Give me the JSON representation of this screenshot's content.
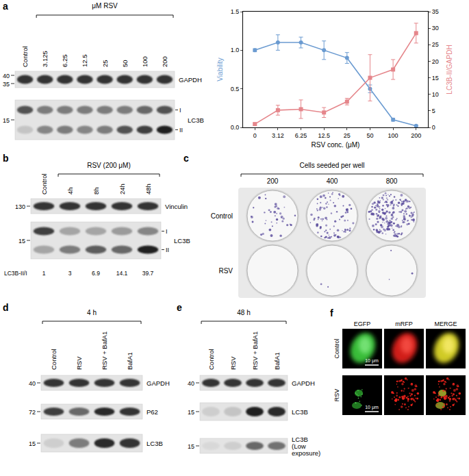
{
  "chart_data": {
    "type": "line",
    "x_label": "RSV conc. (μM)",
    "y_label": "Viability",
    "y2_label": "LC3B-II/GAPDH",
    "categories": [
      "0",
      "3.12",
      "6.25",
      "12.5",
      "25",
      "50",
      "100",
      "200"
    ],
    "series": [
      {
        "name": "Viability",
        "color": "#6b9bd1",
        "marker": "circle",
        "values": [
          1.0,
          1.1,
          1.1,
          1.0,
          0.9,
          0.5,
          0.1,
          0.02
        ],
        "errors": [
          0.02,
          0.1,
          0.07,
          0.12,
          0.07,
          0.05,
          0.02,
          0.01
        ]
      },
      {
        "name": "LC3B-II/GAPDH",
        "axis": "y2",
        "color": "#e5868b",
        "marker": "square",
        "values": [
          1,
          5.2,
          5.5,
          4.5,
          7.8,
          15,
          17.5,
          28.5
        ],
        "errors": [
          0.3,
          1.5,
          2.8,
          1.5,
          1,
          7,
          3,
          3
        ]
      }
    ],
    "ylim": [
      0,
      1.5
    ],
    "yticks": [
      {
        "value": 0,
        "label": "0.0"
      },
      0.5,
      {
        "value": 1,
        "label": "1.0"
      },
      1.5
    ],
    "y2lim": [
      0,
      35
    ],
    "y2ticks": [
      0,
      5,
      10,
      15,
      20,
      25,
      30,
      35
    ],
    "grid": false
  },
  "figure": {
    "panels": [
      {
        "label": "a",
        "header": {
          "text": "μM RSV",
          "first_lane": 1
        },
        "lanes": [
          "Control",
          "3.125",
          "6.25",
          "12.5",
          "25",
          "50",
          "100",
          "200"
        ],
        "blots": [
          {
            "name": "GAPDH",
            "markers": [
              40,
              35
            ],
            "bands": [
              [
                0.85,
                0.85,
                0.85,
                0.85,
                0.85,
                0.85,
                0.85,
                0.85
              ]
            ]
          },
          {
            "name": "LC3B",
            "markers": [
              15
            ],
            "forms": [
              "I",
              "II"
            ],
            "bands": [
              [
                0.7,
                0.5,
                0.5,
                0.5,
                0.5,
                0.5,
                0.6,
                0.7
              ],
              [
                0.15,
                0.45,
                0.5,
                0.45,
                0.5,
                0.7,
                0.8,
                0.95
              ]
            ]
          }
        ]
      },
      {
        "label": "b",
        "header": {
          "text": "RSV (200 μM)",
          "first_lane": 1
        },
        "lanes": [
          "Control",
          "4h",
          "8h",
          "24h",
          "48h"
        ],
        "blots": [
          {
            "name": "Vinculin",
            "markers": [
              130
            ],
            "bands": [
              [
                0.85,
                0.85,
                0.85,
                0.85,
                0.85
              ]
            ]
          },
          {
            "name": "LC3B",
            "markers": [
              15
            ],
            "forms": [
              "I",
              "II"
            ],
            "bands": [
              [
                0.8,
                0.3,
                0.3,
                0.35,
                0.45
              ],
              [
                0.3,
                0.5,
                0.65,
                0.6,
                0.95
              ]
            ]
          }
        ],
        "ratio": {
          "label": "LC3B-II/I",
          "values": [
            1,
            3,
            6.9,
            14.1,
            39.7
          ]
        }
      },
      {
        "label": "c",
        "header": "Cells seeded per well",
        "columns": [
          200,
          400,
          800
        ],
        "rows": [
          {
            "label": "Control",
            "colonies": [
              40,
              90,
              200
            ]
          },
          {
            "label": "RSV",
            "colonies": [
              0,
              2,
              3
            ]
          }
        ]
      },
      {
        "label": "d",
        "header": {
          "text": "4 h",
          "first_lane": 0
        },
        "lanes": [
          "Control",
          "RSV",
          "RSV + BafA1",
          "BafA1"
        ],
        "blots": [
          {
            "name": "GAPDH",
            "markers": [
              40
            ],
            "bands": [
              [
                0.85,
                0.85,
                0.85,
                0.85
              ]
            ]
          },
          {
            "name": "P62",
            "markers": [
              72
            ],
            "bands": [
              [
                0.8,
                0.6,
                0.9,
                0.85
              ]
            ]
          },
          {
            "name": "LC3B",
            "markers": [
              15
            ],
            "bands": [
              [
                0.1,
                0.5,
                0.9,
                0.85
              ]
            ]
          }
        ]
      },
      {
        "label": "e",
        "header": {
          "text": "48 h",
          "first_lane": 0
        },
        "lanes": [
          "Control",
          "RSV",
          "RSV + BafA1",
          "BafA1"
        ],
        "blots": [
          {
            "name": "GAPDH",
            "markers": [
              40
            ],
            "bands": [
              [
                0.85,
                0.85,
                0.85,
                0.85
              ]
            ]
          },
          {
            "name": "LC3B",
            "markers": [
              15
            ],
            "bands": [
              [
                0.1,
                0.15,
                0.95,
                0.9
              ]
            ]
          },
          {
            "name": [
              "LC3B",
              "(Low",
              "exposure)"
            ],
            "markers": [
              15
            ],
            "bands": [
              [
                0.05,
                0.1,
                0.6,
                0.55
              ]
            ]
          }
        ]
      },
      {
        "label": "f",
        "columns": [
          "EGFP",
          "mRFP",
          "MERGE"
        ],
        "rows": [
          "Control",
          "RSV"
        ],
        "scale_bar": "10 μm"
      }
    ]
  }
}
